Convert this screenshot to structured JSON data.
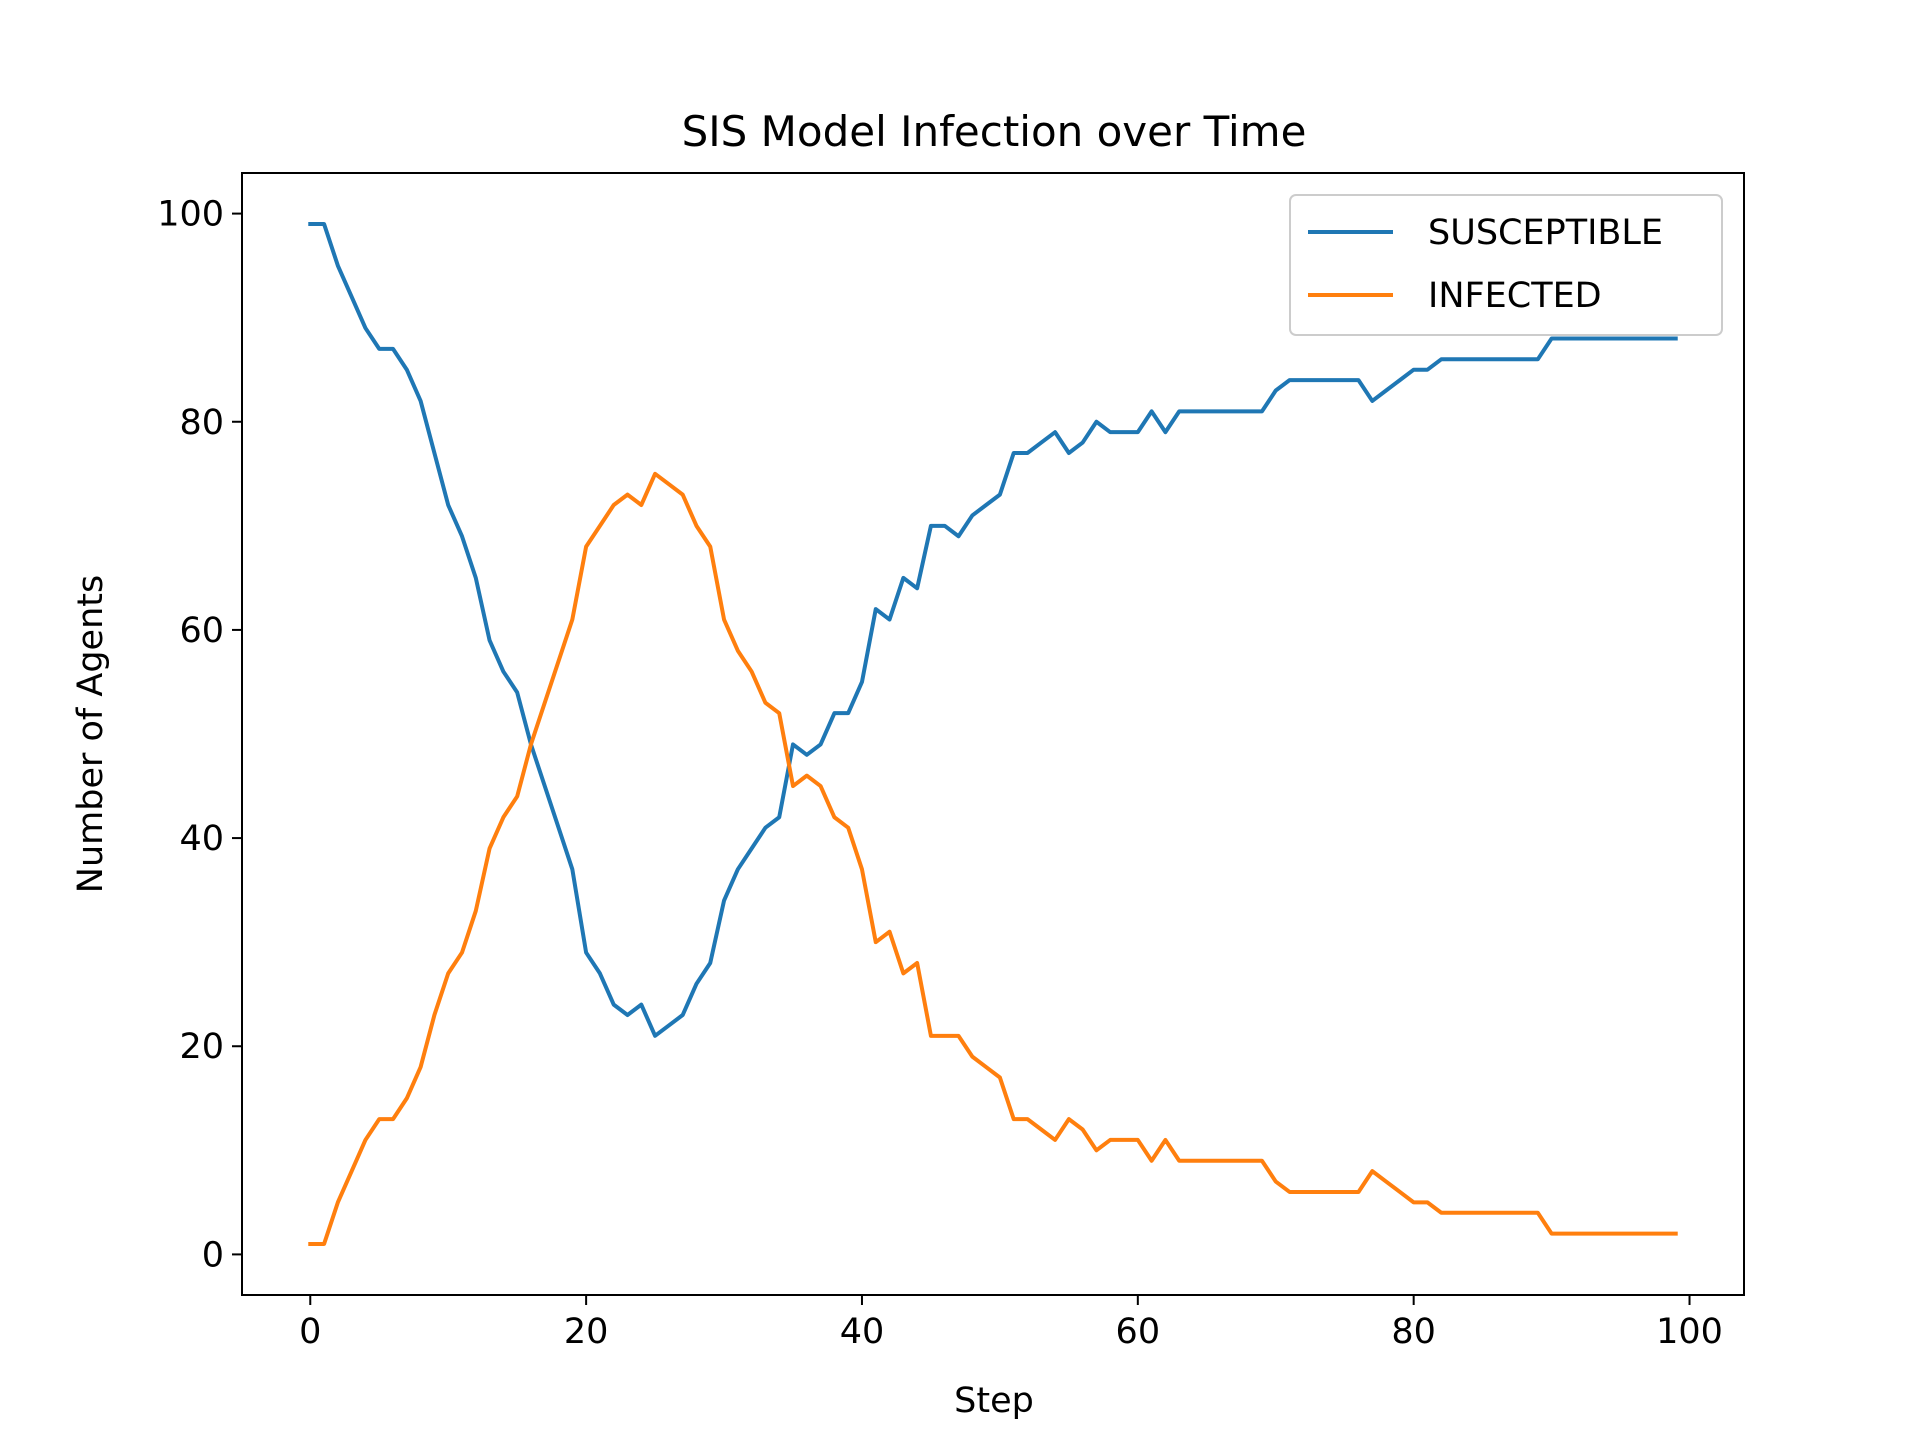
{
  "chart_data": {
    "type": "line",
    "title": "SIS Model Infection over Time",
    "xlabel": "Step",
    "ylabel": "Number of Agents",
    "xlim": [
      -4.95,
      103.95
    ],
    "ylim": [
      -3.9,
      103.9
    ],
    "xticks": [
      0,
      20,
      40,
      60,
      80,
      100
    ],
    "xtick_labels": [
      "0",
      "20",
      "40",
      "60",
      "80",
      "100"
    ],
    "yticks": [
      0,
      20,
      40,
      60,
      80,
      100
    ],
    "ytick_labels": [
      "0",
      "20",
      "40",
      "60",
      "80",
      "100"
    ],
    "grid": false,
    "legend_position": "top-right",
    "x": [
      0,
      1,
      2,
      3,
      4,
      5,
      6,
      7,
      8,
      9,
      10,
      11,
      12,
      13,
      14,
      15,
      16,
      17,
      18,
      19,
      20,
      21,
      22,
      23,
      24,
      25,
      26,
      27,
      28,
      29,
      30,
      31,
      32,
      33,
      34,
      35,
      36,
      37,
      38,
      39,
      40,
      41,
      42,
      43,
      44,
      45,
      46,
      47,
      48,
      49,
      50,
      51,
      52,
      53,
      54,
      55,
      56,
      57,
      58,
      59,
      60,
      61,
      62,
      63,
      64,
      65,
      66,
      67,
      68,
      69,
      70,
      71,
      72,
      73,
      74,
      75,
      76,
      77,
      78,
      79,
      80,
      81,
      82,
      83,
      84,
      85,
      86,
      87,
      88,
      89,
      90,
      91,
      92,
      93,
      94,
      95,
      96,
      97,
      98,
      99
    ],
    "series": [
      {
        "name": "SUSCEPTIBLE",
        "color": "#1f77b4",
        "values": [
          99,
          99,
          95,
          92,
          89,
          87,
          87,
          85,
          82,
          77,
          72,
          69,
          65,
          59,
          56,
          54,
          49,
          45,
          41,
          37,
          29,
          27,
          24,
          23,
          24,
          21,
          22,
          23,
          26,
          28,
          34,
          37,
          39,
          41,
          42,
          49,
          48,
          49,
          52,
          52,
          55,
          62,
          61,
          65,
          64,
          70,
          70,
          69,
          71,
          72,
          73,
          77,
          77,
          78,
          79,
          77,
          78,
          80,
          79,
          79,
          79,
          81,
          79,
          81,
          81,
          81,
          81,
          81,
          81,
          81,
          83,
          84,
          84,
          84,
          84,
          84,
          84,
          82,
          83,
          84,
          85,
          85,
          86,
          86,
          86,
          86,
          86,
          86,
          86,
          86,
          88,
          88,
          88,
          88,
          88,
          88,
          88,
          88,
          88,
          88
        ]
      },
      {
        "name": "INFECTED",
        "color": "#ff7f0e",
        "values": [
          1,
          1,
          5,
          8,
          11,
          13,
          13,
          15,
          18,
          23,
          27,
          29,
          33,
          39,
          42,
          44,
          49,
          53,
          57,
          61,
          68,
          70,
          72,
          73,
          72,
          75,
          74,
          73,
          70,
          68,
          61,
          58,
          56,
          53,
          52,
          45,
          46,
          45,
          42,
          41,
          37,
          30,
          31,
          27,
          28,
          21,
          21,
          21,
          19,
          18,
          17,
          13,
          13,
          12,
          11,
          13,
          12,
          10,
          11,
          11,
          11,
          9,
          11,
          9,
          9,
          9,
          9,
          9,
          9,
          9,
          7,
          6,
          6,
          6,
          6,
          6,
          6,
          8,
          7,
          6,
          5,
          5,
          4,
          4,
          4,
          4,
          4,
          4,
          4,
          4,
          2,
          2,
          2,
          2,
          2,
          2,
          2,
          2,
          2,
          2
        ]
      }
    ]
  }
}
